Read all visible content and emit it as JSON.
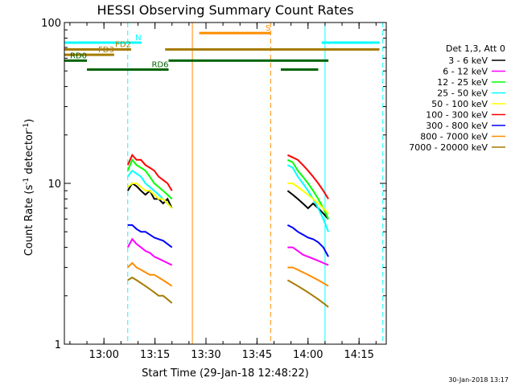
{
  "chart_data": {
    "type": "line",
    "title": "HESSI Observing Summary Count Rates",
    "xlabel": "Start Time (29-Jan-18 12:48:22)",
    "ylabel": "Count Rate (s",
    "ylabel_sup": "-1",
    "ylabel_tail": " detector",
    "ylabel_sup2": "-1",
    "ylabel_end": ")",
    "timestamp": "30-Jan-2018 13:17",
    "y_scale": "log",
    "xlim": [
      "12:48:22",
      "14:23:00"
    ],
    "ylim": [
      1,
      100
    ],
    "x_ticks": [
      "13:00",
      "13:15",
      "13:30",
      "13:45",
      "14:00",
      "14:15"
    ],
    "y_ticks": [
      "1",
      "10",
      "100"
    ],
    "legend_header": "Det 1,3, Att 0",
    "legend_position": "right",
    "series": [
      {
        "name": "3 - 6 keV",
        "color": "#000000",
        "segments": [
          {
            "start": "13:07",
            "end": "13:20",
            "values": [
              9,
              10,
              9.6,
              9,
              8.5,
              9,
              8,
              8,
              7.5,
              8,
              7
            ]
          },
          {
            "start": "13:54",
            "end": "14:06",
            "values": [
              9,
              8.5,
              8,
              7.5,
              7,
              7.5,
              7,
              6.5,
              6
            ]
          }
        ]
      },
      {
        "name": "6 - 12 keV",
        "color": "#ff00ff",
        "segments": [
          {
            "start": "13:07",
            "end": "13:20",
            "values": [
              4,
              4.5,
              4.2,
              4,
              3.8,
              3.7,
              3.5,
              3.4,
              3.3,
              3.2,
              3.1
            ]
          },
          {
            "start": "13:54",
            "end": "14:06",
            "values": [
              4,
              4,
              3.8,
              3.6,
              3.5,
              3.4,
              3.3,
              3.2,
              3.1
            ]
          }
        ]
      },
      {
        "name": "12 - 25 keV",
        "color": "#00ff00",
        "segments": [
          {
            "start": "13:07",
            "end": "13:20",
            "values": [
              12,
              14,
              13,
              12.5,
              12,
              11,
              10,
              9.5,
              9,
              8.5,
              8
            ]
          },
          {
            "start": "13:54",
            "end": "14:06",
            "values": [
              14,
              13.5,
              12,
              11,
              10,
              9,
              8,
              7,
              6
            ]
          }
        ]
      },
      {
        "name": "25 - 50 keV",
        "color": "#00ffff",
        "segments": [
          {
            "start": "13:07",
            "end": "13:20",
            "values": [
              11,
              12,
              11.5,
              11,
              10,
              9.5,
              9,
              8.5,
              8,
              7.5,
              7
            ]
          },
          {
            "start": "13:54",
            "end": "14:06",
            "values": [
              13,
              12.5,
              11,
              10,
              9,
              8,
              7,
              6,
              5
            ]
          }
        ]
      },
      {
        "name": "50 - 100 keV",
        "color": "#ffff00",
        "segments": [
          {
            "start": "13:07",
            "end": "13:20",
            "values": [
              9.5,
              10,
              10,
              9.5,
              9,
              9,
              8.5,
              8,
              8,
              7.5,
              7
            ]
          },
          {
            "start": "13:54",
            "end": "14:06",
            "values": [
              10,
              10,
              9.5,
              9,
              8.5,
              8,
              7.5,
              7,
              6.5
            ]
          }
        ]
      },
      {
        "name": "100 - 300 keV",
        "color": "#ff0000",
        "segments": [
          {
            "start": "13:07",
            "end": "13:20",
            "values": [
              13,
              15,
              14,
              14,
              13,
              12.5,
              12,
              11,
              10.5,
              10,
              9
            ]
          },
          {
            "start": "13:54",
            "end": "14:06",
            "values": [
              15,
              14.5,
              14,
              13,
              12,
              11,
              10,
              9,
              8
            ]
          }
        ]
      },
      {
        "name": "300 - 800 keV",
        "color": "#0000ff",
        "segments": [
          {
            "start": "13:07",
            "end": "13:20",
            "values": [
              5.5,
              5.5,
              5.2,
              5,
              5,
              4.8,
              4.6,
              4.5,
              4.4,
              4.2,
              4
            ]
          },
          {
            "start": "13:54",
            "end": "14:06",
            "values": [
              5.5,
              5.3,
              5,
              4.8,
              4.6,
              4.5,
              4.3,
              4,
              3.5
            ]
          }
        ]
      },
      {
        "name": "800 - 7000 keV",
        "color": "#ff8c00",
        "segments": [
          {
            "start": "13:07",
            "end": "13:20",
            "values": [
              3,
              3.2,
              3,
              2.9,
              2.8,
              2.7,
              2.7,
              2.6,
              2.5,
              2.4,
              2.3
            ]
          },
          {
            "start": "13:54",
            "end": "14:06",
            "values": [
              3,
              3,
              2.9,
              2.8,
              2.7,
              2.6,
              2.5,
              2.4,
              2.3
            ]
          }
        ]
      },
      {
        "name": "7000 - 20000 keV",
        "color": "#a67c00",
        "segments": [
          {
            "start": "13:07",
            "end": "13:20",
            "values": [
              2.5,
              2.6,
              2.5,
              2.4,
              2.3,
              2.2,
              2.1,
              2,
              2,
              1.9,
              1.8
            ]
          },
          {
            "start": "13:54",
            "end": "14:06",
            "values": [
              2.5,
              2.4,
              2.3,
              2.2,
              2.1,
              2,
              1.9,
              1.8,
              1.7
            ]
          }
        ]
      }
    ],
    "flags": [
      {
        "label": "N",
        "color": "#00ffff",
        "level": 75,
        "segments": [
          [
            "12:48:22",
            "13:11"
          ],
          [
            "14:04",
            "14:21"
          ]
        ]
      },
      {
        "label": "S",
        "color": "#ff8c00",
        "level": 86,
        "segments": [
          [
            "13:28",
            "13:49"
          ]
        ]
      },
      {
        "label": "FD2",
        "color": "#a67c00",
        "level": 68,
        "segments": [
          [
            "12:48:22",
            "13:08"
          ],
          [
            "13:18",
            "14:21"
          ]
        ]
      },
      {
        "label": "FD3",
        "color": "#a67c00",
        "level": 63,
        "segments": [
          [
            "12:48:22",
            "13:03"
          ]
        ]
      },
      {
        "label": "RD0",
        "color": "#006400",
        "level": 58,
        "segments": [
          [
            "12:48:22",
            "12:55"
          ],
          [
            "13:19",
            "13:52"
          ],
          [
            "13:52",
            "14:06"
          ]
        ]
      },
      {
        "label": "RD6",
        "color": "#006400",
        "level": 51,
        "segments": [
          [
            "12:55",
            "13:19"
          ],
          [
            "13:52",
            "14:03"
          ]
        ]
      }
    ],
    "vertical_lines": [
      {
        "time": "12:48:22",
        "color": "#00ffff",
        "style": "solid"
      },
      {
        "time": "13:07",
        "color": "#00ffff",
        "style": "dashed"
      },
      {
        "time": "13:26",
        "color": "#ff8c00",
        "style": "solid"
      },
      {
        "time": "13:49",
        "color": "#ff8c00",
        "style": "dashed"
      },
      {
        "time": "14:05",
        "color": "#00ffff",
        "style": "solid"
      },
      {
        "time": "14:22",
        "color": "#00ffff",
        "style": "dashed"
      }
    ]
  }
}
